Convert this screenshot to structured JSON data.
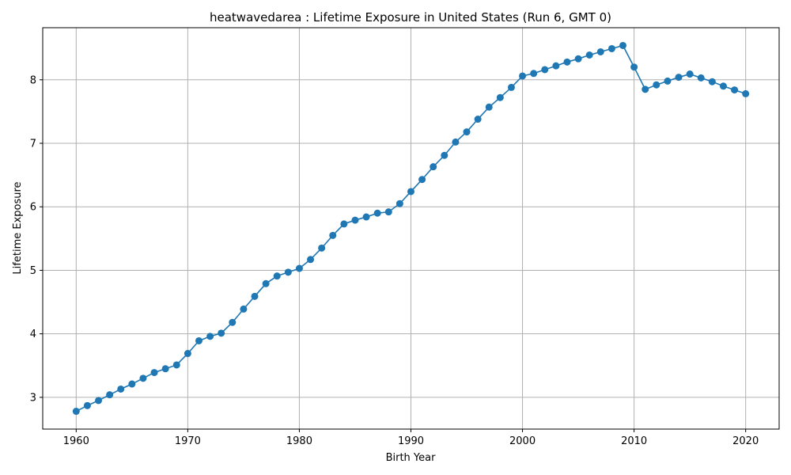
{
  "chart_data": {
    "type": "line",
    "title": "heatwavedarea : Lifetime Exposure in United States (Run 6, GMT 0)",
    "xlabel": "Birth Year",
    "ylabel": "Lifetime Exposure",
    "xlim": [
      1957,
      2023
    ],
    "ylim": [
      2.5,
      8.82
    ],
    "xticks": [
      1960,
      1970,
      1980,
      1990,
      2000,
      2010,
      2020
    ],
    "yticks": [
      3,
      4,
      5,
      6,
      7,
      8
    ],
    "grid": true,
    "series_color": "#1f77b4",
    "x": [
      1960,
      1961,
      1962,
      1963,
      1964,
      1965,
      1966,
      1967,
      1968,
      1969,
      1970,
      1971,
      1972,
      1973,
      1974,
      1975,
      1976,
      1977,
      1978,
      1979,
      1980,
      1981,
      1982,
      1983,
      1984,
      1985,
      1986,
      1987,
      1988,
      1989,
      1990,
      1991,
      1992,
      1993,
      1994,
      1995,
      1996,
      1997,
      1998,
      1999,
      2000,
      2001,
      2002,
      2003,
      2004,
      2005,
      2006,
      2007,
      2008,
      2009,
      2010,
      2011,
      2012,
      2013,
      2014,
      2015,
      2016,
      2017,
      2018,
      2019,
      2020
    ],
    "y": [
      2.78,
      2.87,
      2.95,
      3.04,
      3.13,
      3.21,
      3.3,
      3.39,
      3.45,
      3.51,
      3.69,
      3.89,
      3.96,
      4.01,
      4.18,
      4.39,
      4.59,
      4.79,
      4.91,
      4.97,
      5.03,
      5.17,
      5.35,
      5.55,
      5.73,
      5.79,
      5.84,
      5.9,
      5.92,
      6.05,
      6.24,
      6.43,
      6.63,
      6.81,
      7.02,
      7.18,
      7.38,
      7.57,
      7.72,
      7.88,
      8.06,
      8.1,
      8.16,
      8.22,
      8.28,
      8.33,
      8.39,
      8.44,
      8.49,
      8.54,
      8.2,
      7.85,
      7.92,
      7.98,
      8.04,
      8.09,
      8.03,
      7.97,
      7.9,
      7.84,
      7.78
    ]
  }
}
